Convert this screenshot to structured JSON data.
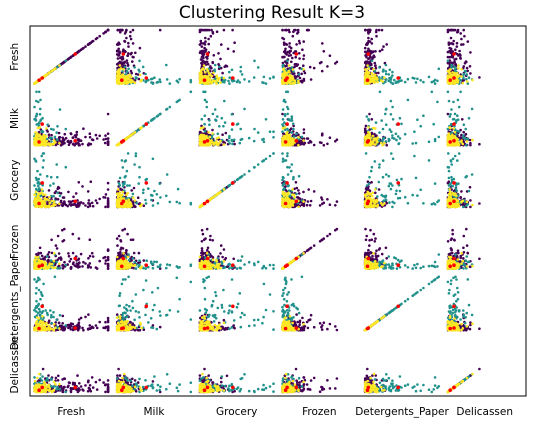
{
  "chart_data": {
    "type": "scatter",
    "title": "Clustering Result K=3",
    "variables": [
      "Fresh",
      "Milk",
      "Grocery",
      "Frozen",
      "Detergents_Paper",
      "Delicassen"
    ],
    "clusters": [
      {
        "color": "#440154"
      },
      {
        "color": "#21918c"
      },
      {
        "color": "#fde725"
      }
    ],
    "centroid_color": "#ff0000",
    "grid": false,
    "ticks_visible": false
  }
}
